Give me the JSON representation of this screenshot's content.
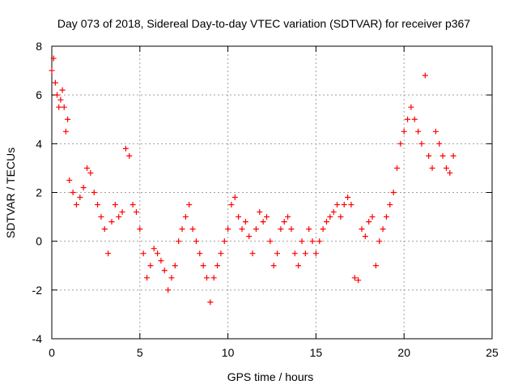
{
  "chart_data": {
    "type": "scatter",
    "title": "Day 073 of 2018, Sidereal Day-to-day VTEC variation (SDTVAR) for receiver p367",
    "xlabel": "GPS time / hours",
    "ylabel": "SDTVAR / TECUs",
    "xlim": [
      0,
      25
    ],
    "ylim": [
      -4,
      8
    ],
    "xticks": [
      "0",
      "5",
      "10",
      "15",
      "20",
      "25"
    ],
    "yticks": [
      "-4",
      "-2",
      "0",
      "2",
      "4",
      "6",
      "8"
    ],
    "grid": true,
    "marker": "+",
    "color": "#ff0000",
    "series": [
      {
        "name": "SDTVAR",
        "values_note": "approximate trace read from plot",
        "x": [
          0.0,
          0.1,
          0.2,
          0.3,
          0.4,
          0.5,
          0.6,
          0.7,
          0.8,
          0.9,
          1.0,
          1.2,
          1.4,
          1.6,
          1.8,
          2.0,
          2.2,
          2.4,
          2.6,
          2.8,
          3.0,
          3.2,
          3.4,
          3.6,
          3.8,
          4.0,
          4.2,
          4.4,
          4.6,
          4.8,
          5.0,
          5.2,
          5.4,
          5.6,
          5.8,
          6.0,
          6.2,
          6.4,
          6.6,
          6.8,
          7.0,
          7.2,
          7.4,
          7.6,
          7.8,
          8.0,
          8.2,
          8.4,
          8.6,
          8.8,
          9.0,
          9.2,
          9.4,
          9.6,
          9.8,
          10.0,
          10.2,
          10.4,
          10.6,
          10.8,
          11.0,
          11.2,
          11.4,
          11.6,
          11.8,
          12.0,
          12.2,
          12.4,
          12.6,
          12.8,
          13.0,
          13.2,
          13.4,
          13.6,
          13.8,
          14.0,
          14.2,
          14.4,
          14.6,
          14.8,
          15.0,
          15.2,
          15.4,
          15.6,
          15.8,
          16.0,
          16.2,
          16.4,
          16.6,
          16.8,
          17.0,
          17.2,
          17.4,
          17.6,
          17.8,
          18.0,
          18.2,
          18.4,
          18.6,
          18.8,
          19.0,
          19.2,
          19.4,
          19.6,
          19.8,
          20.0,
          20.2,
          20.4,
          20.6,
          20.8,
          21.0,
          21.2,
          21.4,
          21.6,
          21.8,
          22.0,
          22.2,
          22.4,
          22.6,
          22.8
        ],
        "y": [
          7.0,
          7.5,
          6.5,
          6.0,
          5.5,
          5.8,
          6.2,
          5.5,
          4.5,
          5.0,
          2.5,
          2.0,
          1.5,
          1.8,
          2.2,
          3.0,
          2.8,
          2.0,
          1.5,
          1.0,
          0.5,
          -0.5,
          0.8,
          1.5,
          1.0,
          1.2,
          3.8,
          3.5,
          1.5,
          1.2,
          0.5,
          -0.5,
          -1.5,
          -1.0,
          -0.3,
          -0.5,
          -0.8,
          -1.2,
          -2.0,
          -1.5,
          -1.0,
          0.0,
          0.5,
          1.0,
          1.5,
          0.5,
          0.0,
          -0.5,
          -1.0,
          -1.5,
          -2.5,
          -1.5,
          -1.0,
          -0.5,
          0.0,
          0.5,
          1.5,
          1.8,
          1.0,
          0.5,
          0.8,
          0.2,
          -0.5,
          0.5,
          1.2,
          0.8,
          1.0,
          0.0,
          -1.0,
          -0.5,
          0.5,
          0.8,
          1.0,
          0.5,
          -0.5,
          -1.0,
          0.0,
          -0.5,
          0.5,
          0.0,
          -0.5,
          0.0,
          0.5,
          0.8,
          1.0,
          1.2,
          1.5,
          1.0,
          1.5,
          1.8,
          1.5,
          -1.5,
          -1.6,
          0.5,
          0.2,
          0.8,
          1.0,
          -1.0,
          0.0,
          0.5,
          1.0,
          1.5,
          2.0,
          3.0,
          4.0,
          4.5,
          5.0,
          5.5,
          5.0,
          4.5,
          4.0,
          6.8,
          3.5,
          3.0,
          4.5,
          4.0,
          3.5,
          3.0,
          2.8,
          3.5
        ]
      }
    ]
  }
}
